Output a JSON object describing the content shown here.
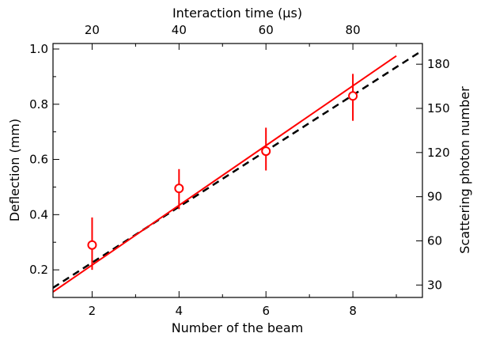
{
  "chart_data": {
    "type": "scatter",
    "title": "",
    "xlabel": "Number of the beam",
    "ylabel": "Deflection (mm)",
    "top_xlabel": "Interaction time (μs)",
    "right_ylabel": "Scattering photon number",
    "xlim": [
      1.1,
      9.6
    ],
    "ylim": [
      0.1,
      1.02
    ],
    "x_ticks": [
      2,
      4,
      6,
      8
    ],
    "y_ticks": [
      0.2,
      0.4,
      0.6,
      0.8,
      1.0
    ],
    "y_tick_labels": [
      "0.2",
      "0.4",
      "0.6",
      "0.8",
      "1.0"
    ],
    "top_ticks": [
      {
        "value": 20,
        "x": 2
      },
      {
        "value": 40,
        "x": 4
      },
      {
        "value": 60,
        "x": 6
      },
      {
        "value": 80,
        "x": 8
      }
    ],
    "right_ticks": [
      {
        "value": 30,
        "y": 0.145
      },
      {
        "value": 60,
        "y": 0.305
      },
      {
        "value": 90,
        "y": 0.465
      },
      {
        "value": 120,
        "y": 0.625
      },
      {
        "value": 150,
        "y": 0.785
      },
      {
        "value": 180,
        "y": 0.945
      }
    ],
    "points": [
      {
        "x": 2,
        "y": 0.29,
        "ylow": 0.2,
        "yhigh": 0.39
      },
      {
        "x": 4,
        "y": 0.495,
        "ylow": 0.42,
        "yhigh": 0.565
      },
      {
        "x": 6,
        "y": 0.63,
        "ylow": 0.56,
        "yhigh": 0.715
      },
      {
        "x": 8,
        "y": 0.83,
        "ylow": 0.74,
        "yhigh": 0.91
      }
    ],
    "fit_line": {
      "color": "#ff0000",
      "style": "solid",
      "x": [
        1.1,
        9.0
      ],
      "y": [
        0.12,
        0.975
      ]
    },
    "dashed_line": {
      "color": "#000000",
      "style": "dashed",
      "x": [
        1.1,
        9.6
      ],
      "y": [
        0.135,
        0.995
      ]
    },
    "point_color": "#ff0000",
    "grid": false,
    "legend": "none"
  }
}
